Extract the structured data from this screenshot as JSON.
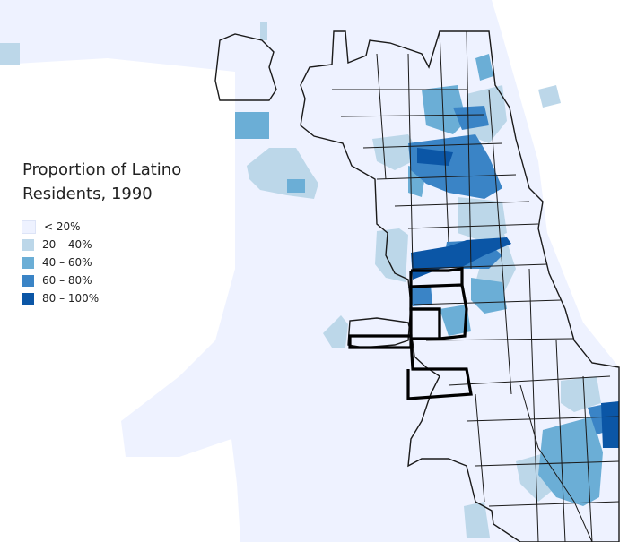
{
  "title": {
    "line1": "Proportion of Latino",
    "line2": "Residents, 1990"
  },
  "legend": [
    {
      "label": "< 20%",
      "color": "#eef2ff"
    },
    {
      "label": "20 – 40%",
      "color": "#bcd7e9"
    },
    {
      "label": "40 – 60%",
      "color": "#6baed6"
    },
    {
      "label": "60 – 80%",
      "color": "#3a84c6"
    },
    {
      "label": "80 – 100%",
      "color": "#0b56a6"
    }
  ]
}
